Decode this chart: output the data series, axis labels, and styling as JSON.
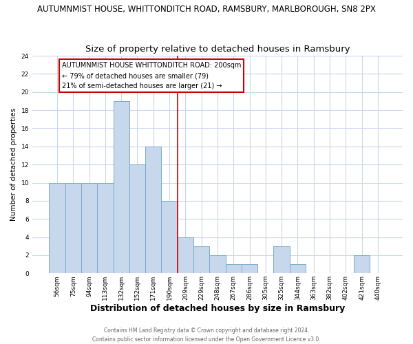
{
  "title": "AUTUMNMIST HOUSE, WHITTONDITCH ROAD, RAMSBURY, MARLBOROUGH, SN8 2PX",
  "subtitle": "Size of property relative to detached houses in Ramsbury",
  "xlabel": "Distribution of detached houses by size in Ramsbury",
  "ylabel": "Number of detached properties",
  "bin_labels": [
    "56sqm",
    "75sqm",
    "94sqm",
    "113sqm",
    "132sqm",
    "152sqm",
    "171sqm",
    "190sqm",
    "209sqm",
    "229sqm",
    "248sqm",
    "267sqm",
    "286sqm",
    "305sqm",
    "325sqm",
    "344sqm",
    "363sqm",
    "382sqm",
    "402sqm",
    "421sqm",
    "440sqm"
  ],
  "bar_heights": [
    10,
    10,
    10,
    10,
    19,
    12,
    14,
    8,
    4,
    3,
    2,
    1,
    1,
    0,
    3,
    1,
    0,
    0,
    0,
    2,
    0
  ],
  "bar_color": "#c8d8ec",
  "bar_edge_color": "#7aabcc",
  "vline_x": 7.5,
  "vline_color": "#cc0000",
  "annotation_line1": "AUTUMNMIST HOUSE WHITTONDITCH ROAD: 200sqm",
  "annotation_line2": "← 79% of detached houses are smaller (79)",
  "annotation_line3": "21% of semi-detached houses are larger (21) →",
  "ylim": [
    0,
    24
  ],
  "yticks": [
    0,
    2,
    4,
    6,
    8,
    10,
    12,
    14,
    16,
    18,
    20,
    22,
    24
  ],
  "footer_line1": "Contains HM Land Registry data © Crown copyright and database right 2024.",
  "footer_line2": "Contains public sector information licensed under the Open Government Licence v3.0.",
  "bg_color": "#ffffff",
  "plot_bg_color": "#ffffff",
  "grid_color": "#c8d8ec",
  "title_fontsize": 8.5,
  "subtitle_fontsize": 9.5,
  "ylabel_fontsize": 7.5,
  "xlabel_fontsize": 9,
  "tick_fontsize": 6.5,
  "annot_fontsize": 7,
  "footer_fontsize": 5.5,
  "footer_color": "#666666"
}
